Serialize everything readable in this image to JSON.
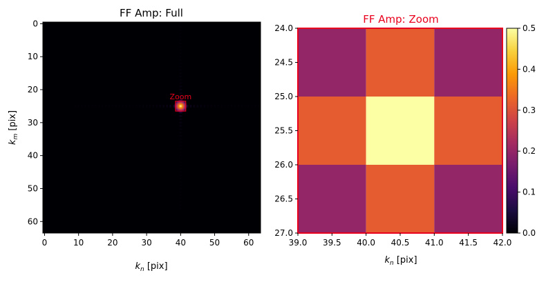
{
  "chart_data": [
    {
      "type": "heatmap",
      "title": "FF Amp: Full",
      "xlabel": "k_n [pix]",
      "ylabel": "k_m [pix]",
      "xlim": [
        -0.5,
        63.5
      ],
      "ylim": [
        63.5,
        -0.5
      ],
      "xticks": [
        0,
        10,
        20,
        30,
        40,
        50,
        60
      ],
      "yticks": [
        0,
        10,
        20,
        30,
        40,
        50,
        60
      ],
      "colormap": "inferno",
      "peak": {
        "x": 40,
        "y": 25,
        "value": 0.5
      },
      "annotation": {
        "text": "Zoom",
        "box_x": [
          39,
          42
        ],
        "box_y": [
          24,
          27
        ],
        "color": "#e8001c"
      },
      "background_color": "#000004"
    },
    {
      "type": "heatmap",
      "title": "FF Amp: Zoom",
      "title_color": "#e8001c",
      "xlabel": "k_n [pix]",
      "ylabel": "",
      "xlim": [
        39.0,
        42.0
      ],
      "ylim": [
        27.0,
        24.0
      ],
      "xticks": [
        "39.0",
        "39.5",
        "40.0",
        "40.5",
        "41.0",
        "41.5",
        "42.0"
      ],
      "yticks": [
        "24.0",
        "24.5",
        "25.0",
        "25.5",
        "26.0",
        "26.5",
        "27.0"
      ],
      "frame_color": "#e8001c",
      "x_edges": [
        39,
        40,
        41,
        42
      ],
      "y_edges": [
        24,
        25,
        26,
        27
      ],
      "values": [
        [
          0.18,
          0.3,
          0.18
        ],
        [
          0.3,
          0.5,
          0.3
        ],
        [
          0.18,
          0.3,
          0.18
        ]
      ],
      "cell_colors": [
        [
          "#932667",
          "#e55c30",
          "#932667"
        ],
        [
          "#e55c30",
          "#fcffa4",
          "#e55c30"
        ],
        [
          "#932667",
          "#e55c30",
          "#932667"
        ]
      ],
      "colorbar": {
        "min": 0.0,
        "max": 0.5,
        "ticks": [
          "0.0",
          "0.1",
          "0.2",
          "0.3",
          "0.4",
          "0.5"
        ],
        "stops": [
          "#000004",
          "#1b0c41",
          "#4a0c6b",
          "#781c6d",
          "#a52c60",
          "#cf4446",
          "#ed6925",
          "#fb9b06",
          "#f7d13d",
          "#fcffa4"
        ]
      }
    }
  ]
}
